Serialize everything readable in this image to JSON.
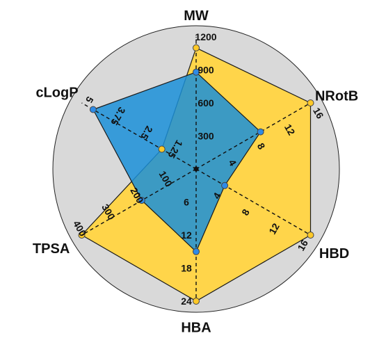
{
  "chart_data": {
    "type": "radar",
    "axes": [
      {
        "name": "MW",
        "max": 1200,
        "ticks": [
          "300",
          "600",
          "900",
          "1200"
        ]
      },
      {
        "name": "NRotB",
        "max": 16,
        "ticks": [
          "4",
          "8",
          "12",
          "16"
        ]
      },
      {
        "name": "HBD",
        "max": 16,
        "ticks": [
          "4",
          "8",
          "12",
          "16"
        ]
      },
      {
        "name": "HBA",
        "max": 24,
        "ticks": [
          "6",
          "12",
          "18",
          "24"
        ]
      },
      {
        "name": "TPSA",
        "max": 400,
        "ticks": [
          "100",
          "200",
          "300",
          "400"
        ]
      },
      {
        "name": "cLogP",
        "max": 5,
        "ticks": [
          "1.25",
          "2.5",
          "3.75",
          "5"
        ]
      }
    ],
    "series": [
      {
        "values": [
          1100,
          16,
          16,
          24,
          400,
          1.5
        ],
        "color": "#FFD54A",
        "stroke": "#1a1a1a",
        "point_color": "#FFC928"
      },
      {
        "values": [
          880,
          9,
          4,
          15,
          190,
          4.5
        ],
        "color": "#1A8FD8",
        "stroke": "#1a1a1a",
        "point_color": "#2E8BE6",
        "opacity": 0.85
      }
    ],
    "background_color": "#d9d9d9",
    "grid": false
  }
}
